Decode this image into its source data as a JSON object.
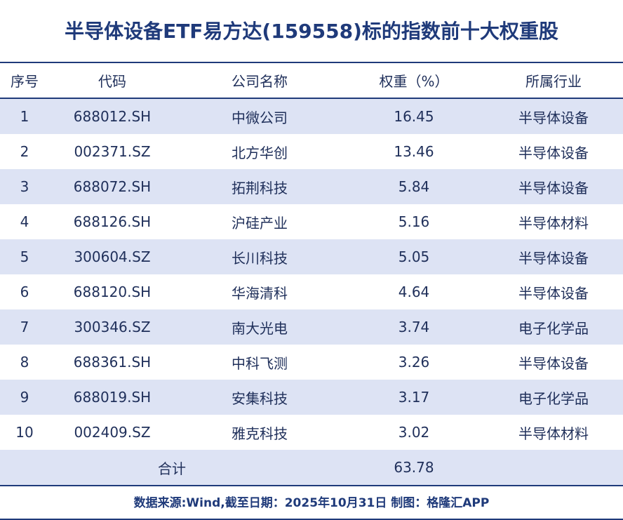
{
  "title": "半导体设备ETF易方达(159558)标的指数前十大权重股",
  "headers": [
    "序号",
    "代码",
    "公司名称",
    "权重（%）",
    "所属行业"
  ],
  "rows": [
    [
      "1",
      "688012.SH",
      "中微公司",
      "16.45",
      "半导体设备"
    ],
    [
      "2",
      "002371.SZ",
      "北方华创",
      "13.46",
      "半导体设备"
    ],
    [
      "3",
      "688072.SH",
      "拓荆科技",
      "5.84",
      "半导体设备"
    ],
    [
      "4",
      "688126.SH",
      "沪硅产业",
      "5.16",
      "半导体材料"
    ],
    [
      "5",
      "300604.SZ",
      "长川科技",
      "5.05",
      "半导体设备"
    ],
    [
      "6",
      "688120.SH",
      "华海清科",
      "4.64",
      "半导体设备"
    ],
    [
      "7",
      "300346.SZ",
      "南大光电",
      "3.74",
      "电子化学品"
    ],
    [
      "8",
      "688361.SH",
      "中科飞测",
      "3.26",
      "半导体设备"
    ],
    [
      "9",
      "688019.SH",
      "安集科技",
      "3.17",
      "电子化学品"
    ],
    [
      "10",
      "002409.SZ",
      "雅克科技",
      "3.02",
      "半导体材料"
    ]
  ],
  "total": {
    "label": "合计",
    "value": "63.78"
  },
  "footer": "数据来源:Wind,截至日期：2025年10月31日 制图：格隆汇APP",
  "colors": {
    "accent": "#1f3a7a",
    "stripe": "#dde3f4"
  }
}
